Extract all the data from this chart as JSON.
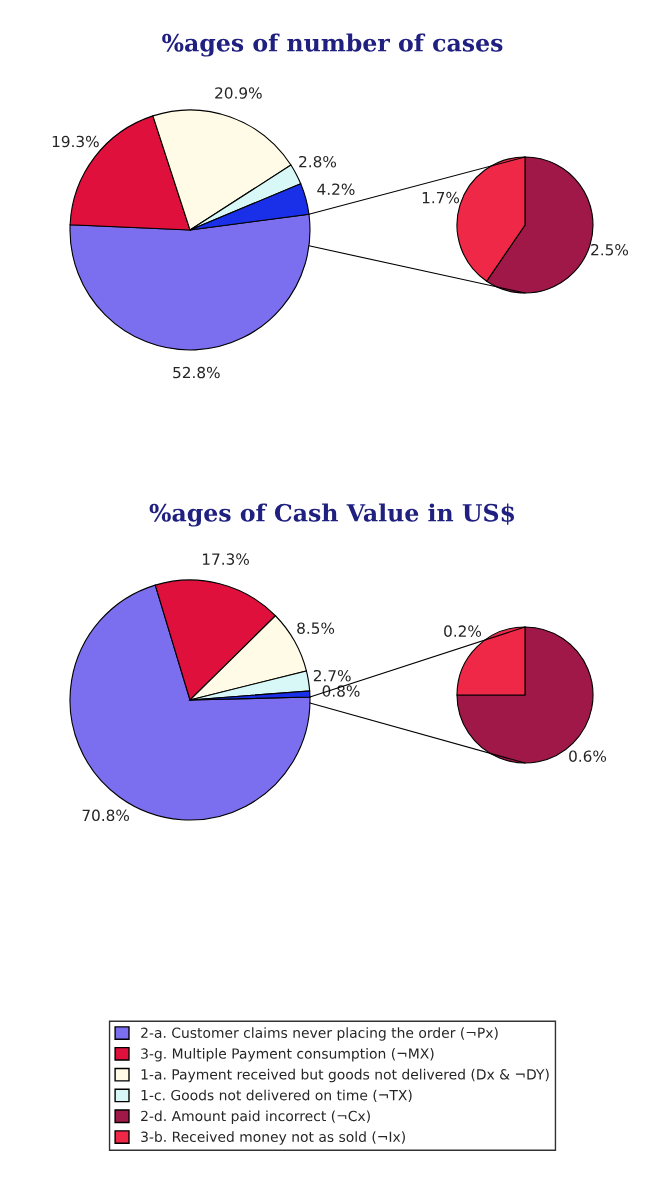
{
  "chart_data": [
    {
      "type": "pie",
      "title": "%ages of number of cases",
      "categories": [
        "2-a. Customer claims never placing the order (¬Px)",
        "3-g. Multiple Payment consumption (¬MX)",
        "1-a. Payment received but goods not delivered (Dx & ¬DY)",
        "1-c. Goods not delivered on time (¬TX)",
        null
      ],
      "values": [
        52.8,
        19.3,
        20.9,
        2.8,
        4.2
      ],
      "colors": [
        "#7b6ff0",
        "#e0103c",
        "#fffbe6",
        "#d8f8f8",
        "#1a30e8"
      ],
      "value_labels": [
        "52.8%",
        "19.3%",
        "20.9%",
        "2.8%",
        "4.2%"
      ],
      "legend": "bottom"
    },
    {
      "type": "pie",
      "categories": [
        "2-d. Amount paid incorrect (¬Cx)",
        "3-b. Received money not as sold (¬Ix)"
      ],
      "values": [
        2.5,
        1.7
      ],
      "colors": [
        "#a01848",
        "#f02848"
      ],
      "value_labels": [
        "2.5%",
        "1.7%"
      ],
      "legend": "bottom"
    },
    {
      "type": "pie",
      "title": "%ages of Cash Value in US$",
      "categories": [
        null,
        null,
        null,
        null,
        null
      ],
      "values": [
        70.8,
        17.3,
        8.5,
        2.7,
        0.8
      ],
      "colors": [
        "#7b6ff0",
        "#e0103c",
        "#fffbe6",
        "#d8f8f8",
        "#1a30e8"
      ],
      "value_labels": [
        "70.8%",
        "17.3%",
        "8.5%",
        "2.7%",
        "0.8%"
      ]
    },
    {
      "type": "pie",
      "categories": [
        null,
        null
      ],
      "values": [
        0.6,
        0.2
      ],
      "colors": [
        "#a01848",
        "#f02848"
      ],
      "value_labels": [
        "0.6%",
        "0.2%"
      ]
    }
  ]
}
